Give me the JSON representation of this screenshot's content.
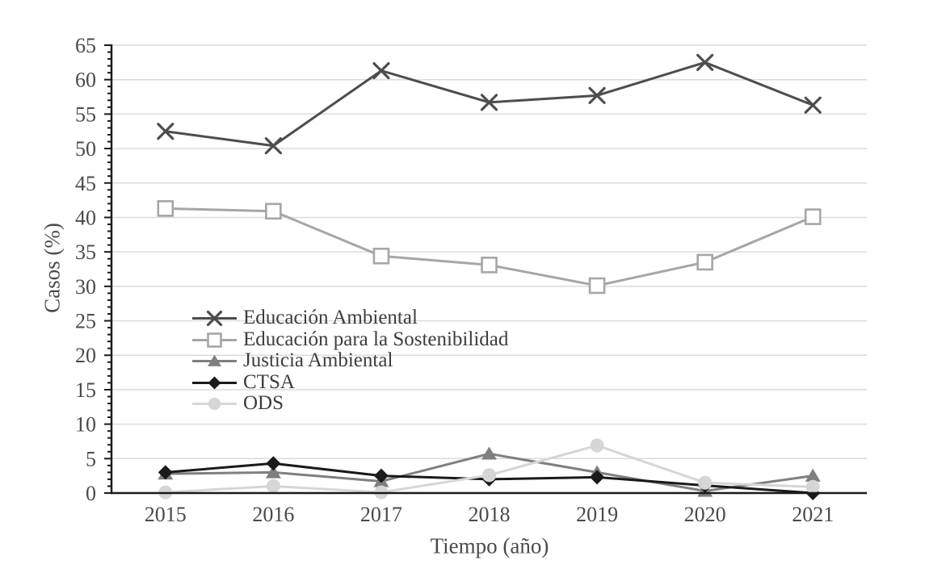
{
  "chart_data": {
    "type": "line",
    "title": "",
    "xlabel": "Tiempo (año)",
    "ylabel": "Casos (%)",
    "categories": [
      "2015",
      "2016",
      "2017",
      "2018",
      "2019",
      "2020",
      "2021"
    ],
    "ylim": [
      0,
      65
    ],
    "y_major_step": 5,
    "y_minor_step": 1,
    "grid": "horizontal-major-only",
    "legend_position": "inside-middle-left",
    "axis_color": "#1a1a1a",
    "gridline_color": "#dbdbdb",
    "text_color": "#4a4a4a",
    "series": [
      {
        "name": "Educación Ambiental",
        "marker": "x",
        "color": "#4d4d4d",
        "values": [
          52.5,
          50.4,
          61.3,
          56.7,
          57.7,
          62.5,
          56.3
        ]
      },
      {
        "name": "Educación para la Sostenibilidad",
        "marker": "square-open",
        "color": "#a6a6a6",
        "values": [
          41.3,
          40.9,
          34.4,
          33.1,
          30.1,
          33.5,
          40.1
        ]
      },
      {
        "name": "Justicia Ambiental",
        "marker": "triangle-filled",
        "color": "#7f7f7f",
        "values": [
          2.8,
          3.0,
          1.7,
          5.7,
          3.0,
          0.3,
          2.5
        ]
      },
      {
        "name": "CTSA",
        "marker": "diamond-filled",
        "color": "#1a1a1a",
        "values": [
          3.0,
          4.3,
          2.5,
          2.0,
          2.3,
          1.1,
          0.0
        ]
      },
      {
        "name": "ODS",
        "marker": "circle-filled",
        "color": "#d6d6d6",
        "values": [
          0.1,
          1.0,
          0.1,
          2.6,
          6.9,
          1.5,
          0.9
        ]
      }
    ]
  }
}
